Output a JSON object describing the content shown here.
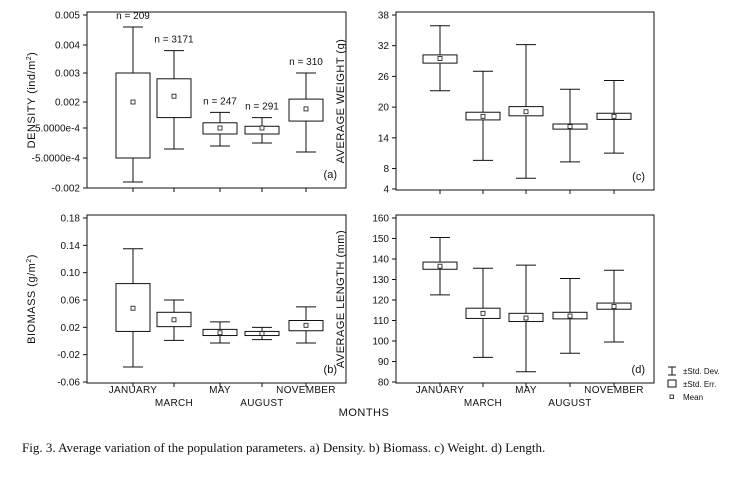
{
  "caption": "Fig. 3. Average variation of the population parameters. a) Density. b) Biomass. c) Weight. d) Length.",
  "xlabel": "MONTHS",
  "legend": {
    "entries": [
      {
        "symbol": "whisker",
        "label": "±Std. Dev."
      },
      {
        "symbol": "box",
        "label": "±Std. Err."
      },
      {
        "symbol": "point",
        "label": "Mean"
      }
    ]
  },
  "chart_data": [
    {
      "type": "box",
      "panel": "(a)",
      "ylabel": "DENSITY (ind/m2)",
      "ylim": [
        -0.002,
        0.005
      ],
      "yticks": [
        -0.002,
        -0.0005,
        0.0005,
        0.002,
        0.003,
        0.004,
        0.005
      ],
      "ytick_labels": [
        "-0.002",
        "-5.0000e-4",
        "5.0000e-4",
        "0.002",
        "0.003",
        "0.004",
        "0.005"
      ],
      "categories": [
        "JANUARY",
        "MARCH",
        "MAY",
        "AUGUST",
        "NOVEMBER"
      ],
      "mean": [
        0.002,
        0.0022,
        0.0005,
        0.0005,
        0.0016
      ],
      "se_low": [
        -0.0005,
        0.0011,
        0.0003,
        0.0003,
        0.0009
      ],
      "se_high": [
        0.003,
        0.0028,
        0.0008,
        0.0006,
        0.0021
      ],
      "sd_low": [
        -0.0017,
        -0.0002,
        -0.0001,
        0.0,
        -0.0003
      ],
      "sd_high": [
        0.0046,
        0.0038,
        0.0014,
        0.0011,
        0.003
      ],
      "annotations": [
        "n = 209",
        "n = 3171",
        "n = 247",
        "n = 291",
        "n = 310"
      ]
    },
    {
      "type": "box",
      "panel": "(b)",
      "ylabel": "BIOMASS (g/m2)",
      "ylim": [
        -0.06,
        0.18
      ],
      "yticks": [
        -0.06,
        -0.02,
        0.02,
        0.06,
        0.1,
        0.14,
        0.18
      ],
      "ytick_labels": [
        "-0.06",
        "-0.02",
        "0.02",
        "0.06",
        "0.10",
        "0.14",
        "0.18"
      ],
      "categories": [
        "JANUARY",
        "MARCH",
        "MAY",
        "AUGUST",
        "NOVEMBER"
      ],
      "mean": [
        0.048,
        0.031,
        0.012,
        0.011,
        0.023
      ],
      "se_low": [
        0.014,
        0.021,
        0.008,
        0.008,
        0.015
      ],
      "se_high": [
        0.084,
        0.042,
        0.017,
        0.014,
        0.03
      ],
      "sd_low": [
        -0.038,
        0.001,
        -0.003,
        0.002,
        -0.003
      ],
      "sd_high": [
        0.135,
        0.06,
        0.028,
        0.02,
        0.05
      ]
    },
    {
      "type": "box",
      "panel": "(c)",
      "ylabel": "AVERAGE WEIGHT (g)",
      "ylim": [
        4,
        38
      ],
      "yticks": [
        4,
        8,
        14,
        20,
        26,
        32,
        38
      ],
      "ytick_labels": [
        "4",
        "8",
        "14",
        "20",
        "26",
        "32",
        "38"
      ],
      "categories": [
        "JANUARY",
        "MARCH",
        "MAY",
        "AUGUST",
        "NOVEMBER"
      ],
      "mean": [
        29.5,
        18.2,
        19.1,
        16.2,
        18.2
      ],
      "se_low": [
        28.6,
        17.5,
        18.3,
        15.7,
        17.6
      ],
      "se_high": [
        30.2,
        19.0,
        20.1,
        16.7,
        18.8
      ],
      "sd_low": [
        23.2,
        9.6,
        6.1,
        9.3,
        11.0
      ],
      "sd_high": [
        35.9,
        27.0,
        32.2,
        23.5,
        25.2
      ]
    },
    {
      "type": "box",
      "panel": "(d)",
      "ylabel": "AVERAGE LENGTH (mm)",
      "ylim": [
        80,
        160
      ],
      "yticks": [
        80,
        90,
        100,
        110,
        120,
        130,
        140,
        150,
        160
      ],
      "ytick_labels": [
        "80",
        "90",
        "100",
        "110",
        "120",
        "130",
        "140",
        "150",
        "160"
      ],
      "categories": [
        "JANUARY",
        "MARCH",
        "MAY",
        "AUGUST",
        "NOVEMBER"
      ],
      "mean": [
        136.5,
        113.5,
        111.2,
        112.2,
        116.8
      ],
      "se_low": [
        135.0,
        111.0,
        109.5,
        110.8,
        115.5
      ],
      "se_high": [
        138.5,
        116.0,
        113.5,
        114.0,
        118.5
      ],
      "sd_low": [
        122.5,
        92.0,
        85.0,
        94.0,
        99.5
      ],
      "sd_high": [
        150.5,
        135.5,
        137.0,
        130.5,
        134.5
      ]
    }
  ]
}
